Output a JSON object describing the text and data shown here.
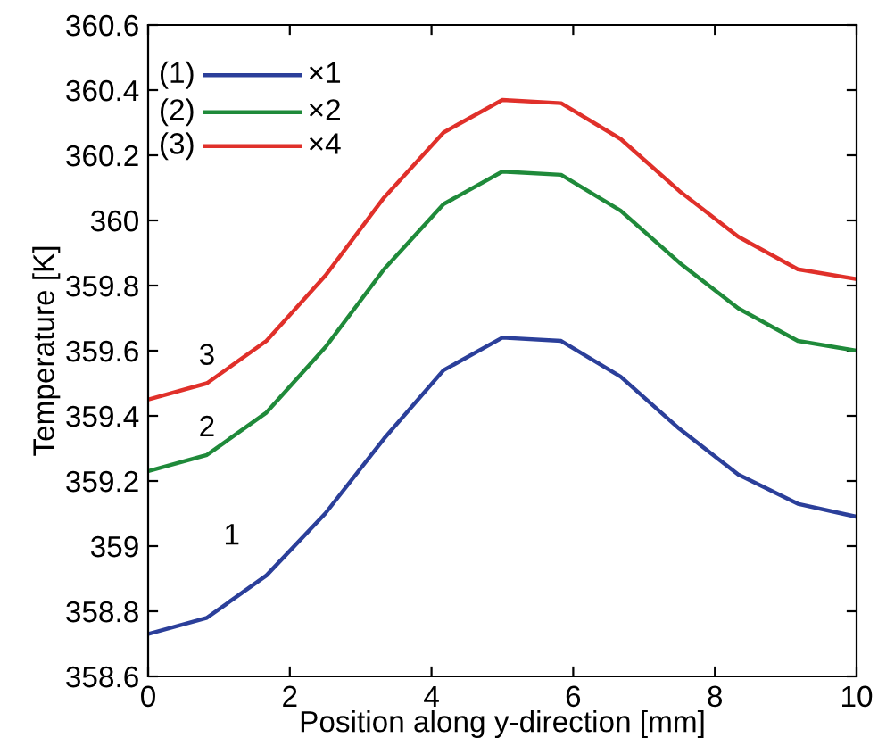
{
  "chart_data": {
    "type": "line",
    "xlabel": "Position along y-direction [mm]",
    "ylabel": "Temperature [K]",
    "x": [
      0,
      0.83,
      1.67,
      2.5,
      3.33,
      4.17,
      5,
      5.83,
      6.67,
      7.5,
      8.33,
      9.17,
      10
    ],
    "series": [
      {
        "name": "×1",
        "color": "#2b3f9a",
        "values": [
          358.73,
          358.78,
          358.91,
          359.1,
          359.33,
          359.54,
          359.64,
          359.63,
          359.52,
          359.36,
          359.22,
          359.13,
          359.09
        ]
      },
      {
        "name": "×2",
        "color": "#1f8a3a",
        "values": [
          359.23,
          359.28,
          359.41,
          359.61,
          359.85,
          360.05,
          360.15,
          360.14,
          360.03,
          359.87,
          359.73,
          359.63,
          359.6
        ]
      },
      {
        "name": "×4",
        "color": "#e0302a",
        "values": [
          359.45,
          359.5,
          359.63,
          359.83,
          360.07,
          360.27,
          360.37,
          360.36,
          360.25,
          360.09,
          359.95,
          359.85,
          359.82
        ]
      }
    ],
    "annotations": [
      "(1)",
      "(2)",
      "(3)",
      "1",
      "2",
      "3"
    ],
    "xlim": [
      0,
      10
    ],
    "xticks": [
      0,
      2,
      4,
      6,
      8,
      10
    ],
    "ylim": [
      358.6,
      360.6
    ],
    "yticks": [
      358.6,
      358.8,
      359,
      359.2,
      359.4,
      359.6,
      359.8,
      360,
      360.2,
      360.4,
      360.6
    ],
    "grid": false,
    "legend": "top left",
    "marker": "none",
    "line_style": "solid"
  }
}
